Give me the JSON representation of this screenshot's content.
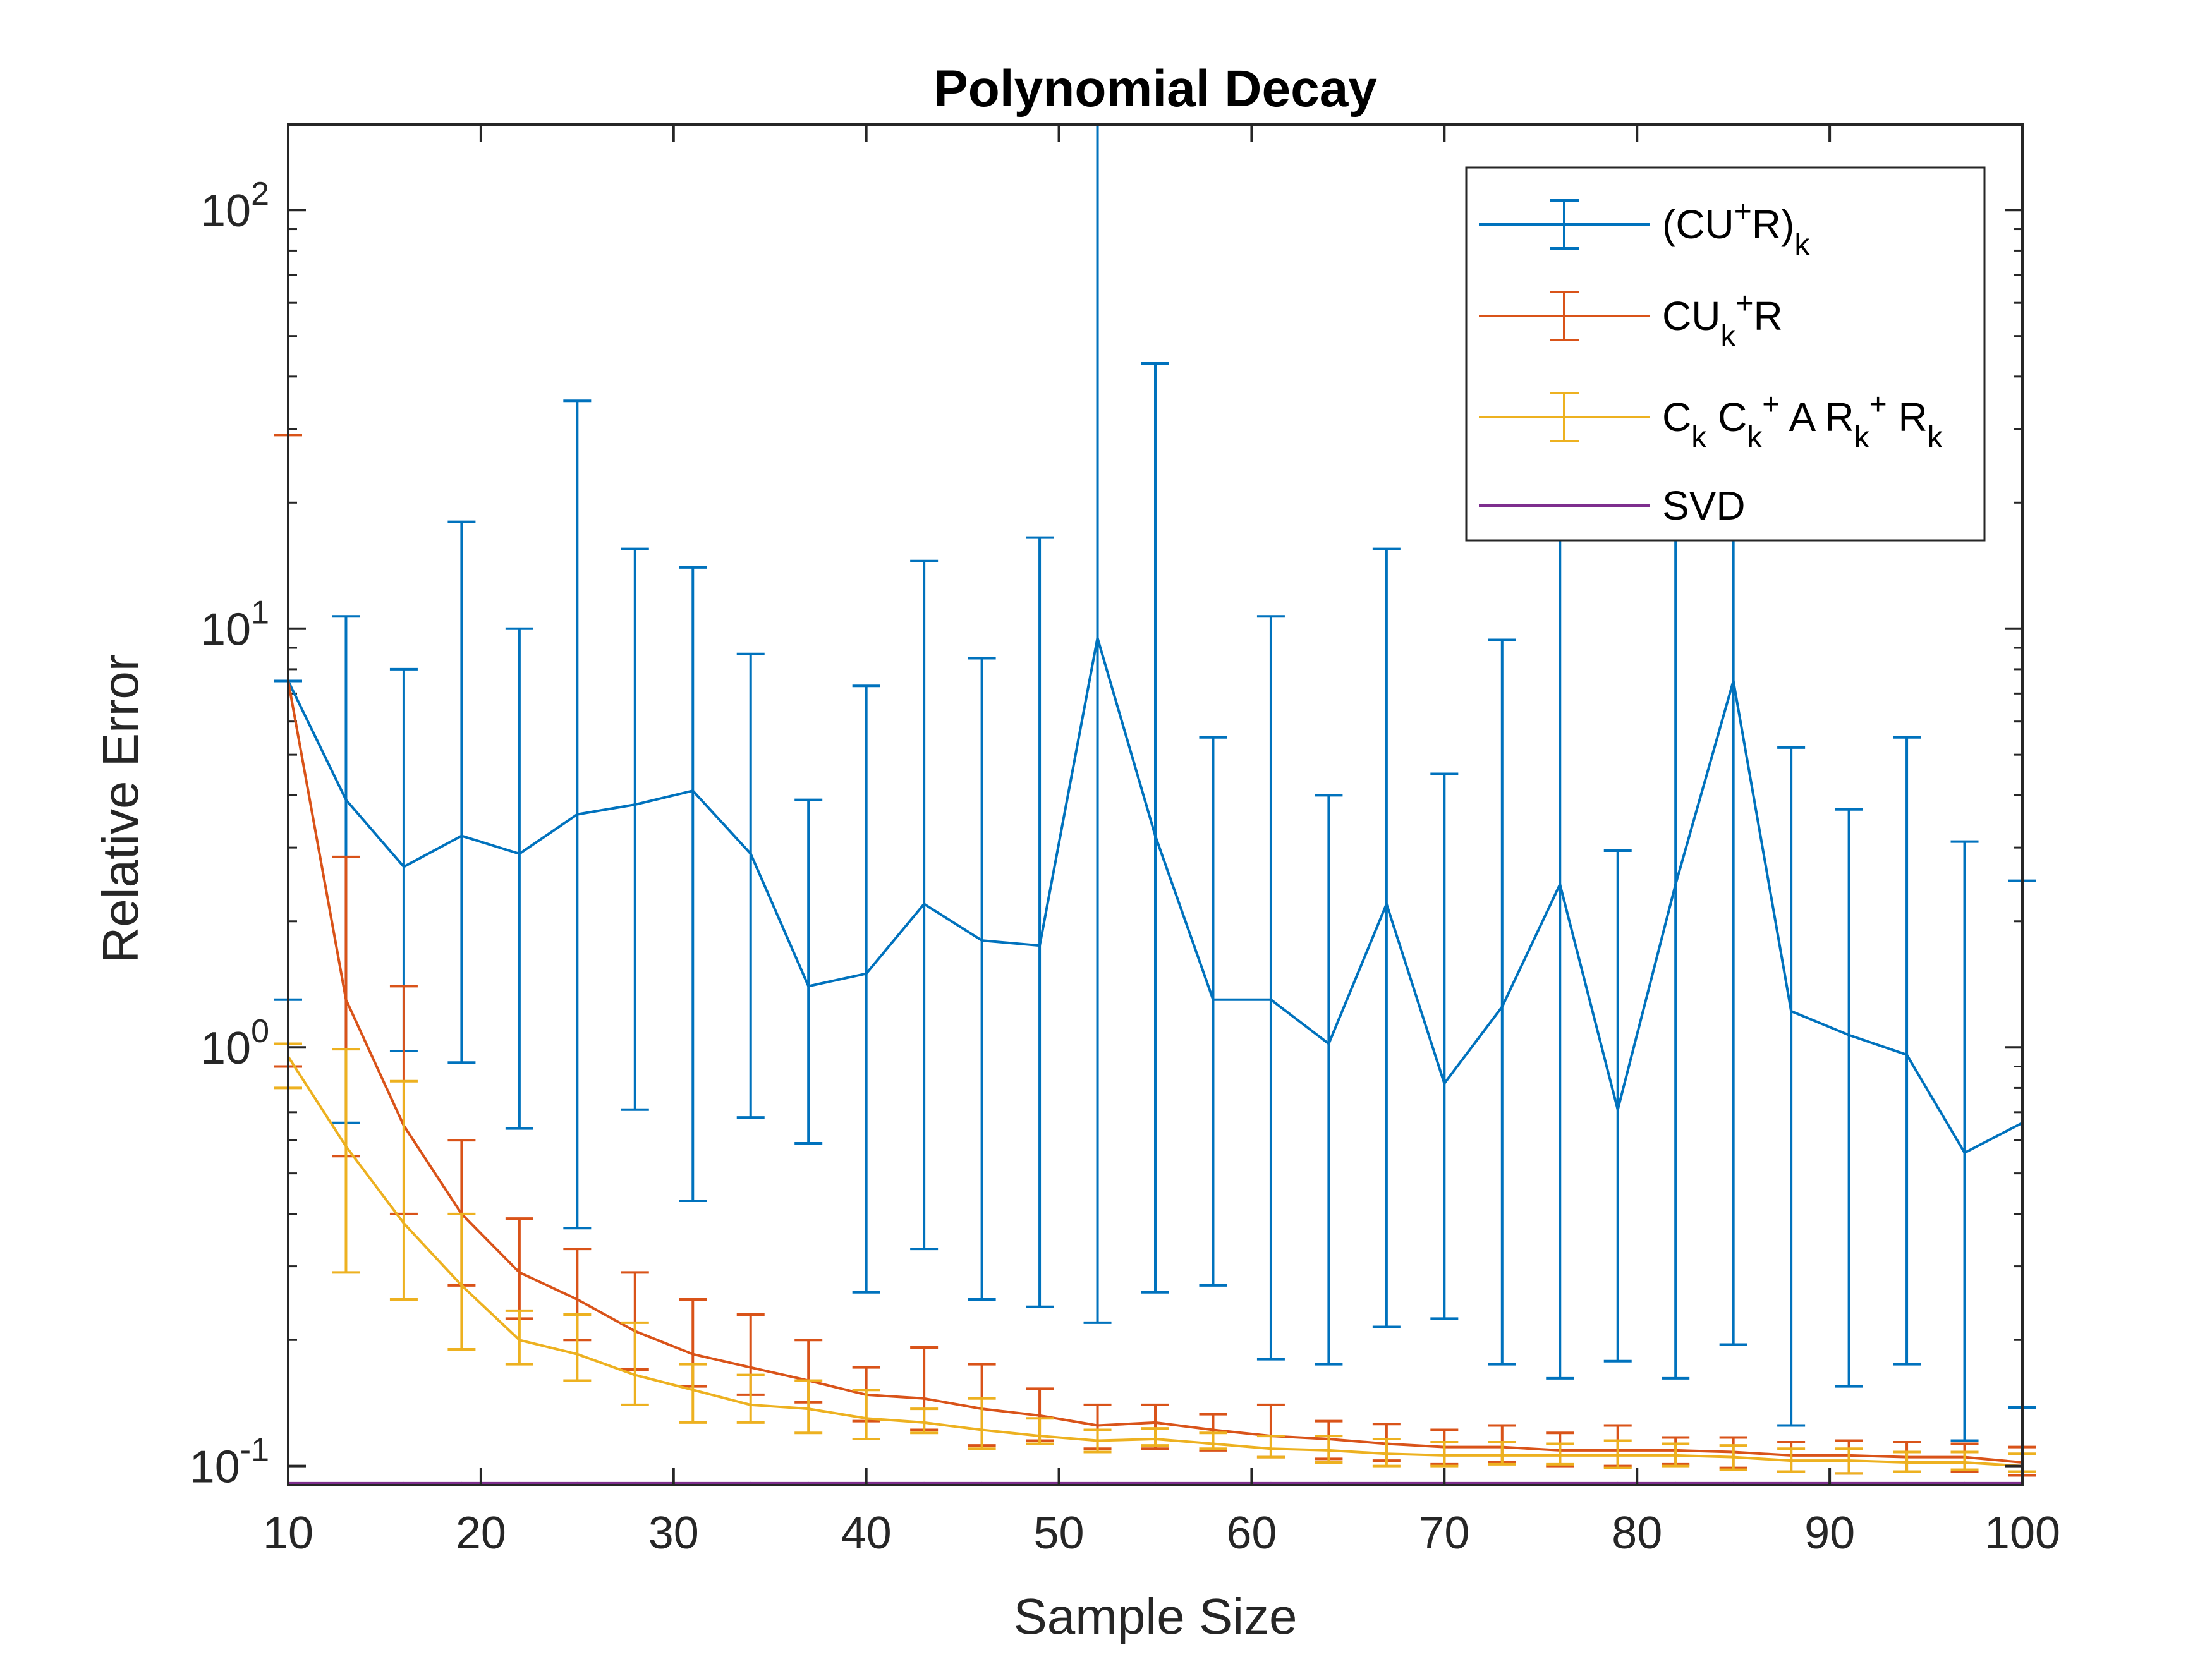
{
  "chart_data": {
    "type": "line",
    "title": "Polynomial Decay",
    "xlabel": "Sample Size",
    "ylabel": "Relative Error",
    "xlim": [
      10,
      100
    ],
    "ylim": [
      0.09,
      160
    ],
    "yscale": "log",
    "xticks": [
      10,
      20,
      30,
      40,
      50,
      60,
      70,
      80,
      90,
      100
    ],
    "yticks": [
      {
        "value": 0.1,
        "base": "10",
        "exp": "-1"
      },
      {
        "value": 1,
        "base": "10",
        "exp": "0"
      },
      {
        "value": 10,
        "base": "10",
        "exp": "1"
      },
      {
        "value": 100,
        "base": "10",
        "exp": "2"
      }
    ],
    "legend_position": "top-right",
    "x": [
      10,
      13,
      16,
      19,
      22,
      25,
      28,
      31,
      34,
      37,
      40,
      43,
      46,
      49,
      52,
      55,
      58,
      61,
      64,
      67,
      70,
      73,
      76,
      79,
      82,
      85,
      88,
      91,
      94,
      97,
      100
    ],
    "series": [
      {
        "name": "(CU+R)k",
        "legend": {
          "parts": [
            {
              "t": "(CU"
            },
            {
              "t": "+",
              "s": "sup"
            },
            {
              "t": "R)"
            },
            {
              "t": "k",
              "s": "sub"
            }
          ]
        },
        "color": "#0072BD",
        "values": [
          7.5,
          3.9,
          2.7,
          3.2,
          2.9,
          3.6,
          3.8,
          4.1,
          2.9,
          1.4,
          1.5,
          2.2,
          1.8,
          1.75,
          9.5,
          3.2,
          1.3,
          1.3,
          1.02,
          2.2,
          0.82,
          1.25,
          2.45,
          0.71,
          2.45,
          7.5,
          1.22,
          1.07,
          0.96,
          0.56,
          0.66
        ],
        "lower": [
          1.3,
          0.66,
          0.98,
          0.92,
          0.64,
          0.37,
          0.71,
          0.43,
          0.68,
          0.59,
          0.26,
          0.33,
          0.25,
          0.24,
          0.22,
          0.26,
          0.27,
          0.18,
          0.175,
          0.215,
          0.225,
          0.175,
          0.162,
          0.178,
          0.162,
          0.195,
          0.125,
          0.155,
          0.175,
          0.115,
          0.138
        ],
        "upper": [
          7.5,
          10.7,
          8.0,
          18.0,
          10.0,
          35.0,
          15.5,
          14.0,
          8.7,
          3.9,
          7.3,
          14.5,
          8.5,
          16.5,
          160,
          43.0,
          5.5,
          10.7,
          4.0,
          15.5,
          4.5,
          9.4,
          16.5,
          2.95,
          16.5,
          16.5,
          5.2,
          3.7,
          5.5,
          3.1,
          2.5
        ]
      },
      {
        "name": "CUk+R",
        "legend": {
          "parts": [
            {
              "t": "CU"
            },
            {
              "t": "k",
              "s": "sub"
            },
            {
              "t": "+",
              "s": "sup"
            },
            {
              "t": "R"
            }
          ]
        },
        "color": "#D95319",
        "values": [
          7.5,
          1.3,
          0.65,
          0.4,
          0.29,
          0.25,
          0.21,
          0.185,
          0.172,
          0.16,
          0.148,
          0.145,
          0.137,
          0.132,
          0.125,
          0.127,
          0.122,
          0.118,
          0.116,
          0.113,
          0.111,
          0.111,
          0.109,
          0.109,
          0.109,
          0.108,
          0.106,
          0.106,
          0.105,
          0.105,
          0.102
        ],
        "lower": [
          0.9,
          0.55,
          0.4,
          0.27,
          0.225,
          0.2,
          0.17,
          0.155,
          0.148,
          0.142,
          0.128,
          0.122,
          0.112,
          0.115,
          0.11,
          0.11,
          0.109,
          0.105,
          0.104,
          0.103,
          0.101,
          0.102,
          0.1,
          0.1,
          0.101,
          0.099,
          0.097,
          0.096,
          0.097,
          0.097,
          0.095
        ],
        "upper": [
          29.0,
          2.85,
          1.4,
          0.6,
          0.39,
          0.33,
          0.29,
          0.25,
          0.23,
          0.2,
          0.172,
          0.192,
          0.175,
          0.153,
          0.14,
          0.14,
          0.133,
          0.14,
          0.128,
          0.126,
          0.122,
          0.125,
          0.12,
          0.125,
          0.117,
          0.117,
          0.114,
          0.115,
          0.114,
          0.113,
          0.111
        ]
      },
      {
        "name": "Ck Ck+ A Rk+ Rk",
        "legend": {
          "parts": [
            {
              "t": "C"
            },
            {
              "t": "k",
              "s": "sub"
            },
            {
              "t": " C"
            },
            {
              "t": "k",
              "s": "sub"
            },
            {
              "t": "+",
              "s": "sup"
            },
            {
              "t": " A R"
            },
            {
              "t": "k",
              "s": "sub"
            },
            {
              "t": "+",
              "s": "sup"
            },
            {
              "t": " R"
            },
            {
              "t": "k",
              "s": "sub"
            }
          ]
        },
        "color": "#EDB120",
        "values": [
          0.95,
          0.58,
          0.38,
          0.27,
          0.2,
          0.185,
          0.165,
          0.152,
          0.14,
          0.137,
          0.13,
          0.127,
          0.122,
          0.118,
          0.115,
          0.116,
          0.113,
          0.11,
          0.109,
          0.107,
          0.106,
          0.106,
          0.106,
          0.106,
          0.106,
          0.105,
          0.103,
          0.103,
          0.102,
          0.102,
          0.1
        ],
        "lower": [
          0.8,
          0.29,
          0.25,
          0.19,
          0.175,
          0.16,
          0.14,
          0.127,
          0.127,
          0.12,
          0.116,
          0.12,
          0.11,
          0.113,
          0.108,
          0.112,
          0.11,
          0.105,
          0.102,
          0.1,
          0.1,
          0.101,
          0.101,
          0.099,
          0.1,
          0.098,
          0.097,
          0.096,
          0.097,
          0.098,
          0.097
        ],
        "upper": [
          1.02,
          0.99,
          0.83,
          0.4,
          0.235,
          0.23,
          0.22,
          0.175,
          0.165,
          0.16,
          0.152,
          0.137,
          0.145,
          0.13,
          0.122,
          0.123,
          0.12,
          0.118,
          0.118,
          0.116,
          0.114,
          0.114,
          0.113,
          0.115,
          0.113,
          0.112,
          0.11,
          0.11,
          0.108,
          0.108,
          0.107
        ]
      },
      {
        "name": "SVD",
        "legend": {
          "parts": [
            {
              "t": "SVD"
            }
          ]
        },
        "color": "#7E2F8E",
        "values": [
          0.091,
          0.091,
          0.091,
          0.091,
          0.091,
          0.091,
          0.091,
          0.091,
          0.091,
          0.091,
          0.091,
          0.091,
          0.091,
          0.091,
          0.091,
          0.091,
          0.091,
          0.091,
          0.091,
          0.091,
          0.091,
          0.091,
          0.091,
          0.091,
          0.091,
          0.091,
          0.091,
          0.091,
          0.091,
          0.091,
          0.091
        ]
      }
    ]
  }
}
